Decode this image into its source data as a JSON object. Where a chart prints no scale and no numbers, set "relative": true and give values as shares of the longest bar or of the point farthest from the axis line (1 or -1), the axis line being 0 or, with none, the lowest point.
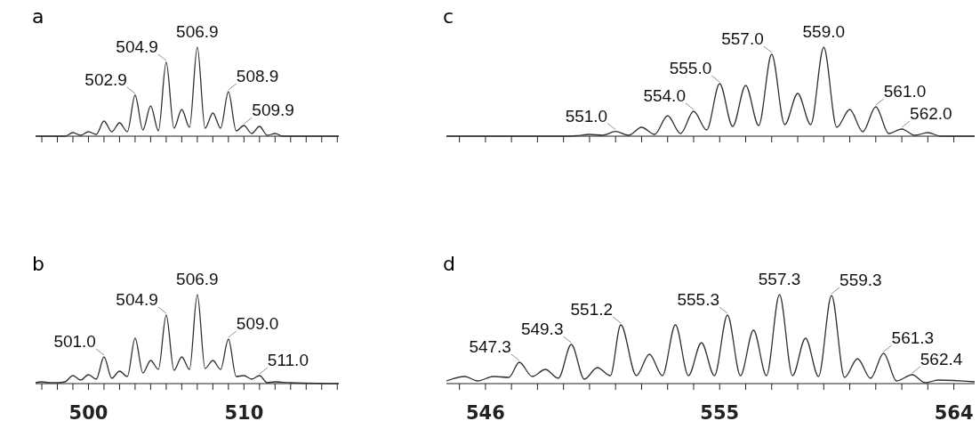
{
  "chart_data": [
    {
      "type": "line",
      "title": "a",
      "relative": true,
      "tick_labels": false,
      "xlim": [
        496.6,
        516.1
      ],
      "xticks": [
        {
          "value": 497,
          "label": null
        },
        {
          "value": 498,
          "label": null
        },
        {
          "value": 499,
          "label": null
        },
        500,
        {
          "value": 501,
          "label": null
        },
        {
          "value": 502,
          "label": null
        },
        {
          "value": 503,
          "label": null
        },
        {
          "value": 504,
          "label": null
        },
        {
          "value": 505,
          "label": null
        },
        {
          "value": 506,
          "label": null
        },
        {
          "value": 507,
          "label": null
        },
        {
          "value": 508,
          "label": null
        },
        {
          "value": 509,
          "label": null
        },
        510,
        {
          "value": 511,
          "label": null
        },
        {
          "value": 512,
          "label": null
        },
        {
          "value": 513,
          "label": null
        },
        {
          "value": 514,
          "label": null
        },
        {
          "value": 515,
          "label": null
        },
        {
          "value": 516,
          "label": null
        }
      ],
      "series": [
        {
          "color": "#303030",
          "x": [
            496.6,
            498,
            498.5,
            499,
            499.5,
            500,
            500.5,
            501,
            501.5,
            502,
            502.5,
            503,
            503.5,
            504,
            504.5,
            505,
            505.5,
            506,
            506.5,
            507,
            507.5,
            508,
            508.5,
            509,
            509.5,
            510,
            510.5,
            511,
            511.5,
            512,
            512.5,
            516.1
          ],
          "values": [
            0,
            0,
            0,
            0.04,
            0.01,
            0.05,
            0.02,
            0.17,
            0.05,
            0.15,
            0.05,
            0.46,
            0.07,
            0.34,
            0.06,
            0.83,
            0.09,
            0.3,
            0.1,
            1,
            0.09,
            0.26,
            0.09,
            0.5,
            0.06,
            0.12,
            0.03,
            0.11,
            0.01,
            0.03,
            0,
            0
          ]
        }
      ],
      "annotations": [
        {
          "text": "502.9",
          "x": 503,
          "y": 0.46
        },
        {
          "text": "504.9",
          "x": 505,
          "y": 0.83
        },
        {
          "text": "506.9",
          "x": 507,
          "y": 1
        },
        {
          "text": "508.9",
          "x": 509,
          "y": 0.5
        },
        {
          "text": "509.9",
          "x": 510,
          "y": 0.12
        }
      ]
    },
    {
      "type": "line",
      "title": "c",
      "relative": true,
      "tick_labels": false,
      "xlim": [
        544.5,
        564.8
      ],
      "xticks": [
        {
          "value": 545,
          "label": null
        },
        546,
        {
          "value": 547,
          "label": null
        },
        {
          "value": 548,
          "label": null
        },
        {
          "value": 549,
          "label": null
        },
        {
          "value": 550,
          "label": null
        },
        {
          "value": 551,
          "label": null
        },
        {
          "value": 552,
          "label": null
        },
        {
          "value": 553,
          "label": null
        },
        {
          "value": 554,
          "label": null
        },
        555,
        {
          "value": 556,
          "label": null
        },
        {
          "value": 557,
          "label": null
        },
        {
          "value": 558,
          "label": null
        },
        {
          "value": 559,
          "label": null
        },
        {
          "value": 560,
          "label": null
        },
        {
          "value": 561,
          "label": null
        },
        {
          "value": 562,
          "label": null
        },
        {
          "value": 563,
          "label": null
        },
        564
      ],
      "series": [
        {
          "color": "#303030",
          "x": [
            544.5,
            549,
            549.5,
            550,
            550.5,
            551,
            551.5,
            552,
            552.5,
            553,
            553.5,
            554,
            554.5,
            555,
            555.5,
            556,
            556.5,
            557,
            557.5,
            558,
            558.5,
            559,
            559.5,
            560,
            560.5,
            561,
            561.5,
            562,
            562.5,
            563,
            563.5,
            564.8
          ],
          "values": [
            0,
            0,
            0.005,
            0.02,
            0.01,
            0.054,
            0.01,
            0.1,
            0.02,
            0.23,
            0.03,
            0.28,
            0.07,
            0.59,
            0.11,
            0.57,
            0.12,
            0.92,
            0.13,
            0.48,
            0.13,
            1,
            0.1,
            0.3,
            0.05,
            0.33,
            0.03,
            0.08,
            0.01,
            0.04,
            0,
            0
          ]
        }
      ],
      "annotations": [
        {
          "text": "551.0",
          "x": 551,
          "y": 0.054
        },
        {
          "text": "554.0",
          "x": 554,
          "y": 0.28
        },
        {
          "text": "555.0",
          "x": 555,
          "y": 0.59
        },
        {
          "text": "557.0",
          "x": 557,
          "y": 0.92
        },
        {
          "text": "559.0",
          "x": 559,
          "y": 1
        },
        {
          "text": "561.0",
          "x": 561,
          "y": 0.33
        },
        {
          "text": "562.0",
          "x": 562,
          "y": 0.08
        }
      ]
    },
    {
      "type": "line",
      "title": "b",
      "relative": true,
      "tick_labels": "x",
      "xlim": [
        496.6,
        516.1
      ],
      "xticks": [
        {
          "value": 497,
          "label": null
        },
        {
          "value": 498,
          "label": null
        },
        {
          "value": 499,
          "label": null
        },
        500,
        {
          "value": 501,
          "label": null
        },
        {
          "value": 502,
          "label": null
        },
        {
          "value": 503,
          "label": null
        },
        {
          "value": 504,
          "label": null
        },
        {
          "value": 505,
          "label": null
        },
        {
          "value": 506,
          "label": null
        },
        {
          "value": 507,
          "label": null
        },
        {
          "value": 508,
          "label": null
        },
        {
          "value": 509,
          "label": null
        },
        510,
        {
          "value": 511,
          "label": null
        },
        {
          "value": 512,
          "label": null
        },
        {
          "value": 513,
          "label": null
        },
        {
          "value": 514,
          "label": null
        },
        {
          "value": 515,
          "label": null
        },
        {
          "value": 516,
          "label": null
        }
      ],
      "series": [
        {
          "color": "#303030",
          "x": [
            496.6,
            497,
            497.5,
            498,
            498.5,
            499,
            499.5,
            500,
            500.5,
            501,
            501.5,
            502,
            502.5,
            503,
            503.5,
            504,
            504.5,
            505,
            505.5,
            506,
            506.5,
            507,
            507.5,
            508,
            508.5,
            509,
            509.5,
            510,
            510.5,
            511,
            511.5,
            512,
            513,
            516.1
          ],
          "values": [
            0.01,
            0.02,
            0.01,
            0.01,
            0.02,
            0.09,
            0.04,
            0.1,
            0.05,
            0.3,
            0.06,
            0.14,
            0.08,
            0.51,
            0.12,
            0.26,
            0.16,
            0.77,
            0.15,
            0.3,
            0.16,
            1,
            0.17,
            0.26,
            0.16,
            0.5,
            0.08,
            0.09,
            0.05,
            0.09,
            0.01,
            0.02,
            0.01,
            0
          ]
        }
      ],
      "annotations": [
        {
          "text": "501.0",
          "x": 501,
          "y": 0.3
        },
        {
          "text": "504.9",
          "x": 505,
          "y": 0.77
        },
        {
          "text": "506.9",
          "x": 507,
          "y": 1
        },
        {
          "text": "509.0",
          "x": 509,
          "y": 0.5
        },
        {
          "text": "511.0",
          "x": 511,
          "y": 0.09
        }
      ]
    },
    {
      "type": "line",
      "title": "d",
      "relative": true,
      "tick_labels": "x",
      "xlim": [
        544.5,
        564.8
      ],
      "xticks": [
        {
          "value": 545,
          "label": null
        },
        546,
        {
          "value": 547,
          "label": null
        },
        {
          "value": 548,
          "label": null
        },
        {
          "value": 549,
          "label": null
        },
        {
          "value": 550,
          "label": null
        },
        {
          "value": 551,
          "label": null
        },
        {
          "value": 552,
          "label": null
        },
        {
          "value": 553,
          "label": null
        },
        {
          "value": 554,
          "label": null
        },
        555,
        {
          "value": 556,
          "label": null
        },
        {
          "value": 557,
          "label": null
        },
        {
          "value": 558,
          "label": null
        },
        {
          "value": 559,
          "label": null
        },
        {
          "value": 560,
          "label": null
        },
        {
          "value": 561,
          "label": null
        },
        {
          "value": 562,
          "label": null
        },
        {
          "value": 563,
          "label": null
        },
        564
      ],
      "series": [
        {
          "color": "#303030",
          "x": [
            544.5,
            545.2,
            545.7,
            546.3,
            546.9,
            547.3,
            547.8,
            548.3,
            548.8,
            549.3,
            549.8,
            550.3,
            550.8,
            551.2,
            551.8,
            552.3,
            552.8,
            553.3,
            553.8,
            554.3,
            554.8,
            555.3,
            555.8,
            556.3,
            556.8,
            557.3,
            557.8,
            558.3,
            558.8,
            559.3,
            559.8,
            560.3,
            560.8,
            561.3,
            561.8,
            562.4,
            562.9,
            563.4,
            564.8
          ],
          "values": [
            0.03,
            0.08,
            0.03,
            0.08,
            0.07,
            0.24,
            0.08,
            0.16,
            0.06,
            0.44,
            0.05,
            0.18,
            0.09,
            0.66,
            0.09,
            0.33,
            0.09,
            0.66,
            0.09,
            0.46,
            0.09,
            0.77,
            0.09,
            0.6,
            0.09,
            1,
            0.09,
            0.51,
            0.08,
            0.99,
            0.07,
            0.28,
            0.06,
            0.34,
            0.03,
            0.1,
            0.01,
            0.04,
            0.02
          ]
        }
      ],
      "annotations": [
        {
          "text": "547.3",
          "x": 547.3,
          "y": 0.24
        },
        {
          "text": "549.3",
          "x": 549.3,
          "y": 0.44
        },
        {
          "text": "551.2",
          "x": 551.2,
          "y": 0.66
        },
        {
          "text": "555.3",
          "x": 555.3,
          "y": 0.77
        },
        {
          "text": "557.3",
          "x": 557.3,
          "y": 1
        },
        {
          "text": "559.3",
          "x": 559.3,
          "y": 0.99
        },
        {
          "text": "561.3",
          "x": 561.3,
          "y": 0.34
        },
        {
          "text": "562.4",
          "x": 562.4,
          "y": 0.1
        }
      ]
    }
  ]
}
